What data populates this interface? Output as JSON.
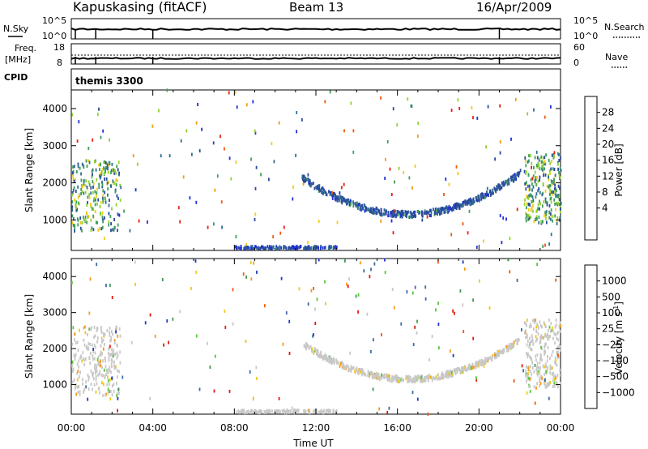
{
  "header": {
    "station": "Kapuskasing (fitACF)",
    "beam": "Beam 13",
    "date": "16/Apr/2009"
  },
  "summary": {
    "left_labels": [
      "N.Sky",
      "Freq.",
      "[MHz]",
      "CPID"
    ],
    "left_ticks": [
      "10^5",
      "10^0",
      "18",
      "8"
    ],
    "right_ticks": [
      "10^5",
      "10^0",
      "60",
      "0"
    ],
    "right_labels": [
      "N.Search",
      "Nave"
    ],
    "cpid_text": "themis 3300"
  },
  "axes": {
    "ylabel": "Slant Range [km]",
    "xlabel": "Time UT",
    "power_label": "Power [dB]",
    "velocity_label_main": "Velocity  [m s",
    "velocity_label_sup": "-1",
    "velocity_label_end": "]"
  },
  "chart_data": [
    {
      "type": "scatter",
      "title": "",
      "panel": "power",
      "xlabel": "Time UT",
      "ylabel": "Slant Range [km]",
      "xlim_hours": [
        0,
        24
      ],
      "ylim_km": [
        180,
        4500
      ],
      "xticks": [
        "00:00",
        "04:00",
        "08:00",
        "12:00",
        "16:00",
        "20:00",
        "00:00"
      ],
      "yticks": [
        1000,
        2000,
        3000,
        4000
      ],
      "colorbar": {
        "label": "Power [dB]",
        "ticks": [
          "28",
          "24",
          "20",
          "16",
          "12",
          "8",
          "4"
        ],
        "colors": [
          "#e8200e",
          "#f05a10",
          "#f59a14",
          "#f0cc18",
          "#8fd22e",
          "#3e9e5a",
          "#2f6e8f",
          "#2a4a9a",
          "#1f2ed8"
        ]
      },
      "echo_regions": [
        {
          "t_start": 0.0,
          "t_end": 2.4,
          "r_start": 700,
          "r_end": 2600,
          "level": "12-20"
        },
        {
          "t_start": 11.3,
          "t_end": 22.0,
          "r_start": 1150,
          "r_end": 2100,
          "level": "4-8",
          "shape": "U"
        },
        {
          "t_start": 22.2,
          "t_end": 24.0,
          "r_start": 900,
          "r_end": 2800,
          "level": "12-24"
        }
      ]
    },
    {
      "type": "scatter",
      "title": "",
      "panel": "velocity",
      "xlabel": "Time UT",
      "ylabel": "Slant Range [km]",
      "xlim_hours": [
        0,
        24
      ],
      "ylim_km": [
        180,
        4500
      ],
      "xticks": [
        "00:00",
        "04:00",
        "08:00",
        "12:00",
        "16:00",
        "20:00",
        "00:00"
      ],
      "yticks": [
        1000,
        2000,
        3000,
        4000
      ],
      "colorbar": {
        "label": "Velocity [m s-1]",
        "ticks": [
          "1000",
          "500",
          "100",
          "25",
          "−25",
          "−100",
          "−500",
          "−1000"
        ],
        "colors": [
          "#2235c8",
          "#3e6aa6",
          "#3f9a56",
          "#58c83a",
          "#c8c8c8",
          "#f0c81e",
          "#f59a1a",
          "#f05a10",
          "#e21a0e"
        ]
      },
      "echo_regions": [
        {
          "t_start": 0.0,
          "t_end": 2.4,
          "r_start": 700,
          "r_end": 2600,
          "level": "-25-25"
        },
        {
          "t_start": 11.3,
          "t_end": 22.0,
          "r_start": 1150,
          "r_end": 2100,
          "level": "-25-25",
          "shape": "U"
        },
        {
          "t_start": 22.2,
          "t_end": 24.0,
          "r_start": 900,
          "r_end": 2800,
          "level": "-25-25"
        }
      ]
    }
  ]
}
